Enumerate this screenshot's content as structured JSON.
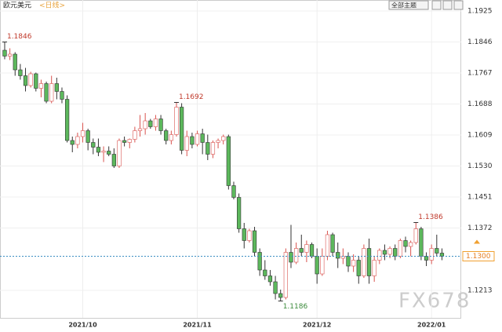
{
  "header": {
    "title": "欧元美元",
    "period": "<日线>",
    "theme_button": "全部主题"
  },
  "chart_data": {
    "type": "candlestick",
    "watermark": "FX678",
    "up_color": "#d9534f",
    "down_color": "#5cb85c",
    "ylim": [
      1.1143,
      1.1953
    ],
    "yticks": [
      1.1925,
      1.1846,
      1.1767,
      1.1688,
      1.1609,
      {
        "value": 1.153,
        "label": "1.1530"
      },
      1.1451,
      1.1372,
      1.1213
    ],
    "xlim": [
      -0.9,
      87.7
    ],
    "xticks": [
      {
        "value": 15,
        "label": "2021/10"
      },
      {
        "value": 37,
        "label": "2021/11"
      },
      {
        "value": 60,
        "label": "2021/12"
      },
      {
        "value": 82,
        "label": "2022/01"
      }
    ],
    "current": {
      "value": 1.13,
      "label": "1.1300"
    },
    "annotations": [
      {
        "value": 1.1846,
        "label": "1.1846",
        "kind": "high"
      },
      {
        "value": 1.1692,
        "label": "1.1692",
        "kind": "high"
      },
      {
        "value": 1.1386,
        "label": "1.1386",
        "kind": "high"
      },
      {
        "value": 1.1186,
        "label": "1.1186",
        "kind": "low"
      }
    ],
    "open": [
      1.1825,
      1.181,
      1.1815,
      1.1775,
      1.176,
      1.1735,
      1.1765,
      1.1728,
      1.174,
      1.1695,
      1.174,
      1.172,
      1.17,
      1.1595,
      1.1585,
      1.1605,
      1.162,
      1.159,
      1.1578,
      1.1565,
      1.1568,
      1.156,
      1.153,
      1.1595,
      1.159,
      1.1598,
      1.162,
      1.1625,
      1.1645,
      1.163,
      1.165,
      1.162,
      1.1595,
      1.161,
      1.168,
      1.157,
      1.1605,
      1.1585,
      1.1612,
      1.159,
      1.156,
      1.159,
      1.1595,
      1.1605,
      1.148,
      1.145,
      1.137,
      1.134,
      1.1365,
      1.131,
      1.1265,
      1.125,
      1.1235,
      1.1205,
      1.1195,
      1.131,
      1.1285,
      1.132,
      1.131,
      1.133,
      1.13,
      1.1255,
      1.13,
      1.1355,
      1.131,
      1.1295,
      1.13,
      1.1275,
      1.129,
      1.125,
      1.132,
      1.125,
      1.129,
      1.1315,
      1.1305,
      1.132,
      1.13,
      1.134,
      1.1325,
      1.1335,
      1.137,
      1.13,
      1.129,
      1.132,
      1.1308
    ],
    "high": [
      1.1846,
      1.183,
      1.182,
      1.179,
      1.178,
      1.177,
      1.1768,
      1.175,
      1.1745,
      1.176,
      1.1755,
      1.173,
      1.171,
      1.1605,
      1.1615,
      1.164,
      1.1625,
      1.16,
      1.16,
      1.158,
      1.158,
      1.1575,
      1.16,
      1.1605,
      1.16,
      1.163,
      1.166,
      1.1665,
      1.165,
      1.166,
      1.166,
      1.1625,
      1.162,
      1.1692,
      1.169,
      1.162,
      1.1615,
      1.162,
      1.1625,
      1.161,
      1.1595,
      1.16,
      1.161,
      1.161,
      1.149,
      1.146,
      1.1385,
      1.137,
      1.1375,
      1.132,
      1.129,
      1.1265,
      1.125,
      1.1215,
      1.132,
      1.138,
      1.1335,
      1.1355,
      1.134,
      1.1335,
      1.132,
      1.132,
      1.1365,
      1.136,
      1.1335,
      1.132,
      1.131,
      1.1305,
      1.13,
      1.133,
      1.1345,
      1.13,
      1.132,
      1.133,
      1.1325,
      1.133,
      1.1345,
      1.135,
      1.134,
      1.1386,
      1.1375,
      1.131,
      1.133,
      1.1355,
      1.132
    ],
    "low": [
      1.1802,
      1.18,
      1.176,
      1.175,
      1.172,
      1.173,
      1.172,
      1.1705,
      1.169,
      1.169,
      1.17,
      1.169,
      1.159,
      1.1565,
      1.1575,
      1.159,
      1.157,
      1.156,
      1.1555,
      1.154,
      1.1555,
      1.1525,
      1.1525,
      1.158,
      1.1575,
      1.159,
      1.1605,
      1.161,
      1.1625,
      1.162,
      1.161,
      1.1585,
      1.1585,
      1.1605,
      1.156,
      1.1555,
      1.1575,
      1.158,
      1.156,
      1.1545,
      1.155,
      1.1575,
      1.1585,
      1.147,
      1.1445,
      1.136,
      1.132,
      1.1335,
      1.13,
      1.125,
      1.124,
      1.1225,
      1.119,
      1.1186,
      1.119,
      1.127,
      1.128,
      1.13,
      1.1285,
      1.1295,
      1.123,
      1.125,
      1.129,
      1.13,
      1.127,
      1.128,
      1.126,
      1.126,
      1.123,
      1.1245,
      1.123,
      1.1235,
      1.128,
      1.129,
      1.1295,
      1.129,
      1.1295,
      1.131,
      1.13,
      1.133,
      1.129,
      1.1275,
      1.128,
      1.13,
      1.129
    ],
    "close": [
      1.181,
      1.1815,
      1.1775,
      1.176,
      1.1735,
      1.1765,
      1.1728,
      1.174,
      1.1695,
      1.174,
      1.172,
      1.17,
      1.1595,
      1.1585,
      1.1605,
      1.162,
      1.159,
      1.1578,
      1.1565,
      1.1568,
      1.156,
      1.153,
      1.1595,
      1.159,
      1.1598,
      1.162,
      1.1625,
      1.1645,
      1.163,
      1.165,
      1.162,
      1.1595,
      1.161,
      1.168,
      1.157,
      1.1605,
      1.1585,
      1.1612,
      1.159,
      1.156,
      1.159,
      1.1595,
      1.1605,
      1.148,
      1.145,
      1.137,
      1.134,
      1.1365,
      1.131,
      1.1265,
      1.125,
      1.1235,
      1.1205,
      1.1195,
      1.131,
      1.1285,
      1.132,
      1.131,
      1.133,
      1.13,
      1.1255,
      1.13,
      1.1355,
      1.131,
      1.1295,
      1.13,
      1.1275,
      1.129,
      1.125,
      1.132,
      1.125,
      1.129,
      1.1315,
      1.1305,
      1.132,
      1.13,
      1.134,
      1.1325,
      1.1335,
      1.137,
      1.13,
      1.129,
      1.132,
      1.1308,
      1.13
    ]
  }
}
